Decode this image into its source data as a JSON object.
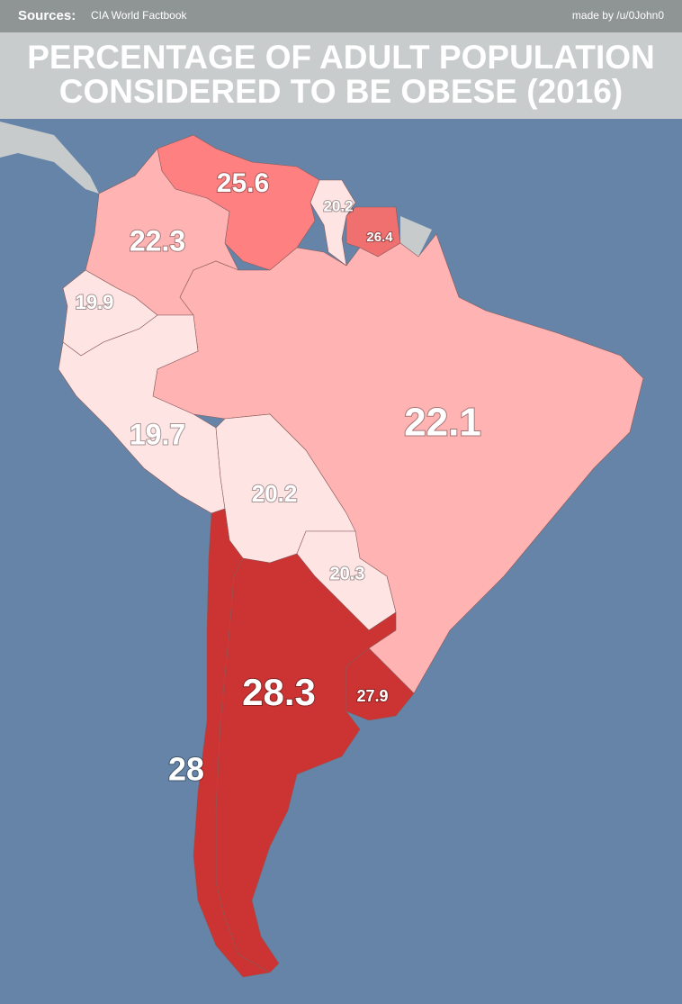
{
  "header": {
    "sources_label": "Sources:",
    "sources": "CIA World Factbook",
    "credit": "made by /u/0John0",
    "title_line1": "PERCENTAGE OF ADULT POPULATION",
    "title_line2": "CONSIDERED TO BE OBESE (2016)"
  },
  "regions": [
    {
      "value": 25.6,
      "color": "#ff8080"
    },
    {
      "value": 20.2,
      "color": "#ffe4e4"
    },
    {
      "value": 26.4,
      "color": "#f07070"
    },
    {
      "value": 22.3,
      "color": "#ffb3b3"
    },
    {
      "value": 19.9,
      "color": "#ffe4e4"
    },
    {
      "value": 22.1,
      "color": "#ffb3b3"
    },
    {
      "value": 19.7,
      "color": "#ffe4e4"
    },
    {
      "value": 20.2,
      "color": "#ffe4e4"
    },
    {
      "value": 20.3,
      "color": "#ffe4e4"
    },
    {
      "value": 28.3,
      "color": "#cc3333"
    },
    {
      "value": 27.9,
      "color": "#cc3333"
    },
    {
      "value": 28,
      "color": "#cc3333"
    }
  ]
}
